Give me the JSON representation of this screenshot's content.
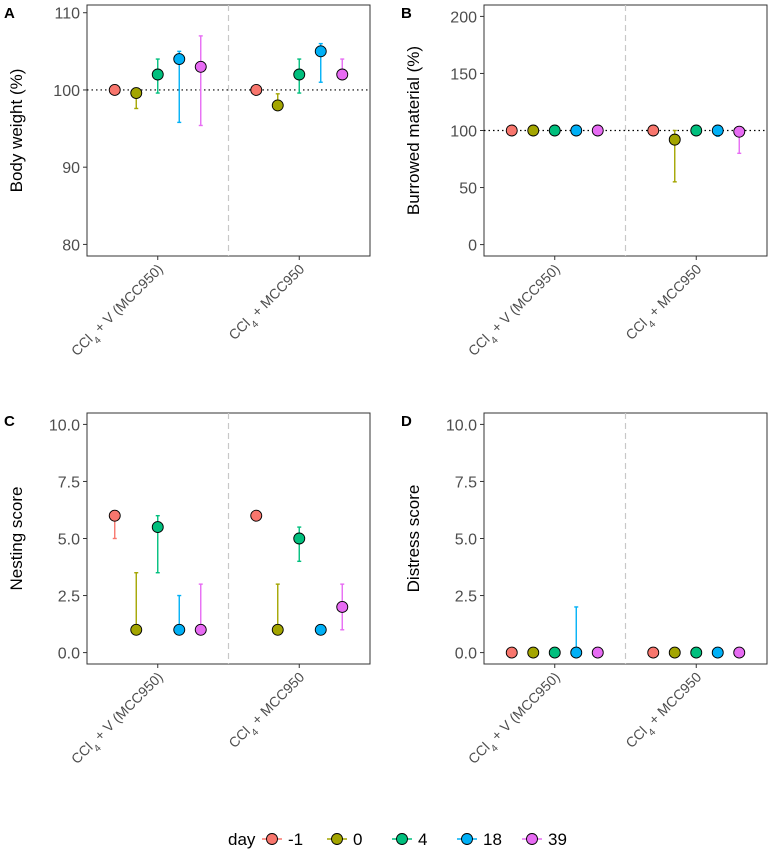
{
  "legend": {
    "title": "day",
    "entries": [
      {
        "label": "-1",
        "color": "#F8766D"
      },
      {
        "label": "0",
        "color": "#A3A500"
      },
      {
        "label": "4",
        "color": "#00BF7D"
      },
      {
        "label": "18",
        "color": "#00B0F6"
      },
      {
        "label": "39",
        "color": "#E76BF3"
      }
    ]
  },
  "category_labels": [
    {
      "main": "CCl",
      "sub": "4",
      "rest": " + V (MCC950)"
    },
    {
      "main": "CCl",
      "sub": "4",
      "rest": " + MCC950"
    }
  ],
  "chart_data": [
    {
      "panel": "A",
      "type": "scatter",
      "ylabel": "Body weight (%)",
      "ylim": [
        78.5,
        111
      ],
      "yticks": [
        "80",
        "90",
        "100",
        "110"
      ],
      "reference_line": 100,
      "categories": [
        "CCl4 + V (MCC950)",
        "CCl4 + MCC950"
      ],
      "series": [
        {
          "name": "-1",
          "values": [
            100,
            100
          ],
          "lower": [
            100,
            100
          ],
          "upper": [
            100,
            100
          ]
        },
        {
          "name": "0",
          "values": [
            99.6,
            98
          ],
          "lower": [
            97.6,
            97.6
          ],
          "upper": [
            99.6,
            99.5
          ]
        },
        {
          "name": "4",
          "values": [
            102,
            102
          ],
          "lower": [
            99.6,
            99.6
          ],
          "upper": [
            104,
            104
          ]
        },
        {
          "name": "18",
          "values": [
            104,
            105
          ],
          "lower": [
            95.8,
            101
          ],
          "upper": [
            105,
            106
          ]
        },
        {
          "name": "39",
          "values": [
            103,
            102
          ],
          "lower": [
            95.4,
            102
          ],
          "upper": [
            107,
            104
          ]
        }
      ]
    },
    {
      "panel": "B",
      "type": "scatter",
      "ylabel": "Burrowed material (%)",
      "ylim": [
        -10,
        210
      ],
      "yticks": [
        "0",
        "50",
        "100",
        "150",
        "200"
      ],
      "reference_line": 100,
      "categories": [
        "CCl4 + V (MCC950)",
        "CCl4 + MCC950"
      ],
      "series": [
        {
          "name": "-1",
          "values": [
            100,
            100
          ],
          "lower": [
            100,
            100
          ],
          "upper": [
            100,
            100
          ]
        },
        {
          "name": "0",
          "values": [
            100,
            92
          ],
          "lower": [
            100,
            55
          ],
          "upper": [
            100,
            100
          ]
        },
        {
          "name": "4",
          "values": [
            100,
            100
          ],
          "lower": [
            100,
            100
          ],
          "upper": [
            100,
            100
          ]
        },
        {
          "name": "18",
          "values": [
            100,
            100
          ],
          "lower": [
            100,
            95
          ],
          "upper": [
            100,
            100
          ]
        },
        {
          "name": "39",
          "values": [
            100,
            99
          ],
          "lower": [
            100,
            80
          ],
          "upper": [
            100,
            100
          ]
        }
      ]
    },
    {
      "panel": "C",
      "type": "scatter",
      "ylabel": "Nesting score",
      "ylim": [
        -0.5,
        10.5
      ],
      "yticks": [
        "0.0",
        "2.5",
        "5.0",
        "7.5",
        "10.0"
      ],
      "categories": [
        "CCl4 + V (MCC950)",
        "CCl4 + MCC950"
      ],
      "series": [
        {
          "name": "-1",
          "values": [
            6,
            6
          ],
          "lower": [
            5,
            6
          ],
          "upper": [
            6,
            6
          ]
        },
        {
          "name": "0",
          "values": [
            1,
            1
          ],
          "lower": [
            1,
            1
          ],
          "upper": [
            3.5,
            3
          ]
        },
        {
          "name": "4",
          "values": [
            5.5,
            5
          ],
          "lower": [
            3.5,
            4
          ],
          "upper": [
            6,
            5.5
          ]
        },
        {
          "name": "18",
          "values": [
            1,
            1
          ],
          "lower": [
            1,
            1
          ],
          "upper": [
            2.5,
            1
          ]
        },
        {
          "name": "39",
          "values": [
            1,
            2
          ],
          "lower": [
            1,
            1
          ],
          "upper": [
            3,
            3
          ]
        }
      ]
    },
    {
      "panel": "D",
      "type": "scatter",
      "ylabel": "Distress score",
      "ylim": [
        -0.5,
        10.5
      ],
      "yticks": [
        "0.0",
        "2.5",
        "5.0",
        "7.5",
        "10.0"
      ],
      "categories": [
        "CCl4 + V (MCC950)",
        "CCl4 + MCC950"
      ],
      "series": [
        {
          "name": "-1",
          "values": [
            0,
            0
          ],
          "lower": [
            0,
            0
          ],
          "upper": [
            0,
            0
          ]
        },
        {
          "name": "0",
          "values": [
            0,
            0
          ],
          "lower": [
            0,
            0
          ],
          "upper": [
            0,
            0
          ]
        },
        {
          "name": "4",
          "values": [
            0,
            0
          ],
          "lower": [
            0,
            0
          ],
          "upper": [
            0,
            0
          ]
        },
        {
          "name": "18",
          "values": [
            0,
            0
          ],
          "lower": [
            0,
            0
          ],
          "upper": [
            2,
            0
          ]
        },
        {
          "name": "39",
          "values": [
            0,
            0
          ],
          "lower": [
            0,
            0
          ],
          "upper": [
            0,
            0
          ]
        }
      ]
    }
  ]
}
